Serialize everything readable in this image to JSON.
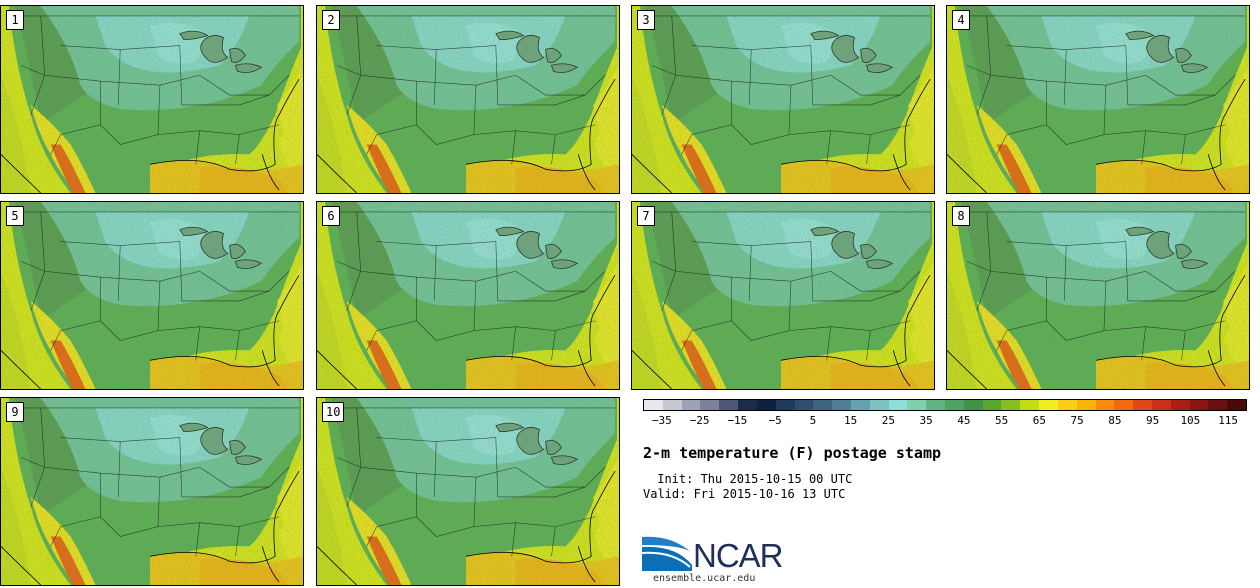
{
  "figure": {
    "title": "2-m temperature (F) postage stamp",
    "init": " Init: Thu 2015-10-15 00 UTC",
    "valid": "Valid: Fri 2015-10-16 13 UTC"
  },
  "members": [
    "1",
    "2",
    "3",
    "4",
    "5",
    "6",
    "7",
    "8",
    "9",
    "10"
  ],
  "colorbar": {
    "unit": "F",
    "tick_labels": [
      "−35",
      "−25",
      "−15",
      "−5",
      "5",
      "15",
      "25",
      "35",
      "45",
      "55",
      "65",
      "75",
      "85",
      "95",
      "105",
      "115"
    ],
    "tick_values": [
      -35,
      -25,
      -15,
      -5,
      5,
      15,
      25,
      35,
      45,
      55,
      65,
      75,
      85,
      95,
      105,
      115
    ],
    "bounds": [
      -40,
      120
    ],
    "colors": [
      "#e8e8ee",
      "#c6c8d4",
      "#9ea2b6",
      "#7d829c",
      "#4c5676",
      "#1e2a4a",
      "#102040",
      "#213a5c",
      "#2f4d6e",
      "#3e6480",
      "#4e7f96",
      "#66a2ad",
      "#7cc2c0",
      "#8ee0d6",
      "#7fcfb0",
      "#5fb584",
      "#4ea466",
      "#3e9444",
      "#58a82e",
      "#86bf23",
      "#c2de10",
      "#f2ee22",
      "#f8cf12",
      "#fbb305",
      "#f98a0d",
      "#f06a12",
      "#e04818",
      "#c83018",
      "#a82014",
      "#8a1410",
      "#6a1010",
      "#4a0808"
    ]
  },
  "logo": {
    "text": "NCAR",
    "url_text": "ensemble.ucar.edu"
  }
}
